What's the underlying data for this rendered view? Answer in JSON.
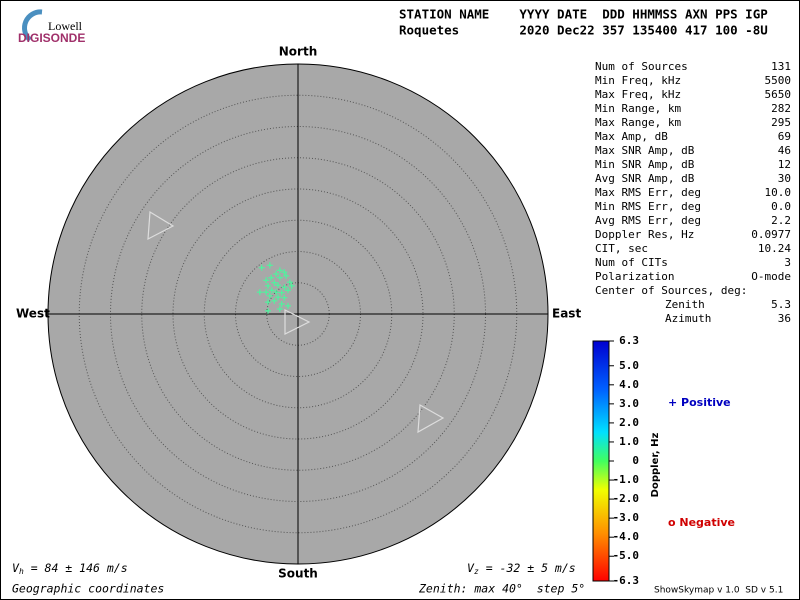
{
  "logo": {
    "line1": "Lowell",
    "line2": "DIGISONDE"
  },
  "header": {
    "columns": "STATION NAME    YYYY DATE  DDD HHMMSS AXN PPS IGP",
    "values": "Roquetes        2020 Dec22 357 135400 417 100 -8U"
  },
  "compass": {
    "north": "North",
    "south": "South",
    "west": "West",
    "east": "East"
  },
  "stats": [
    {
      "label": "Num of Sources",
      "value": "131"
    },
    {
      "label": "Min Freq, kHz",
      "value": "5500"
    },
    {
      "label": "Max Freq, kHz",
      "value": "5650"
    },
    {
      "label": "Min Range, km",
      "value": "282"
    },
    {
      "label": "Max Range, km",
      "value": "295"
    },
    {
      "label": "Max Amp, dB",
      "value": "69"
    },
    {
      "label": "Max SNR Amp, dB",
      "value": "46"
    },
    {
      "label": "Min SNR Amp, dB",
      "value": "12"
    },
    {
      "label": "Avg SNR Amp, dB",
      "value": "30"
    },
    {
      "label": "Max RMS Err, deg",
      "value": "10.0"
    },
    {
      "label": "Min RMS Err, deg",
      "value": "0.0"
    },
    {
      "label": "Avg RMS Err, deg",
      "value": "2.2"
    },
    {
      "label": "Doppler Res, Hz",
      "value": "0.0977"
    },
    {
      "label": "CIT, sec",
      "value": "10.24"
    },
    {
      "label": "Num of CITs",
      "value": "3"
    },
    {
      "label": "Polarization",
      "value": "O-mode"
    },
    {
      "label": "Center of Sources, deg:"
    },
    {
      "label": "Zenith",
      "value": "5.3"
    },
    {
      "label": "Azimuth",
      "value": "36"
    }
  ],
  "colorbar": {
    "label": "Doppler, Hz",
    "lim": [
      -6.3,
      6.3
    ],
    "ticks": [
      6.3,
      {
        "value": 5,
        "label": "5.0"
      },
      {
        "value": 4,
        "label": "4.0"
      },
      {
        "value": 3,
        "label": "3.0"
      },
      {
        "value": 2,
        "label": "2.0"
      },
      {
        "value": 1,
        "label": "1.0"
      },
      0,
      {
        "value": -1,
        "label": "-1.0"
      },
      {
        "value": -2,
        "label": "-2.0"
      },
      {
        "value": -3,
        "label": "-3.0"
      },
      {
        "value": -4,
        "label": "-4.0"
      },
      {
        "value": -5,
        "label": "-5.0"
      },
      -6.3
    ]
  },
  "legend": {
    "positive": "+ Positive",
    "negative": "o Negative"
  },
  "sources": {
    "color": "#40ff9c",
    "x": [
      -5.8,
      -4.5,
      -2.9,
      -2.2,
      -3.5,
      -4.3,
      -5.1,
      -2.9,
      -1.9,
      -1.3,
      -3.8,
      -4.8,
      -3.2,
      -2.2,
      -1.6,
      -1.0,
      -6.1,
      -5.1,
      -4.2,
      -3.5,
      -2.6,
      -4.5,
      -3.2,
      -2.2,
      -4.8,
      -3.8,
      -2.6,
      -1.6,
      -4.8,
      -2.9
    ],
    "y": [
      7.4,
      7.8,
      7.0,
      6.7,
      6.4,
      5.8,
      5.4,
      5.8,
      6.1,
      5.1,
      5.0,
      4.5,
      4.6,
      4.3,
      3.8,
      4.5,
      3.5,
      3.5,
      3.8,
      3.5,
      3.4,
      2.9,
      2.7,
      2.6,
      1.9,
      2.1,
      1.6,
      1.3,
      0.5,
      0.8
    ]
  },
  "footer": {
    "vh": {
      "symbol": "V",
      "sub": "h",
      "text": " = 84 ± 146 m/s"
    },
    "vz": {
      "symbol": "V",
      "sub": "z",
      "text": " = -32 ± 5 m/s"
    },
    "coords": "Geographic coordinates",
    "zenith": "Zenith: max 40°  step 5°",
    "version": "ShowSkymap v 1.0  SD v 5.1"
  }
}
